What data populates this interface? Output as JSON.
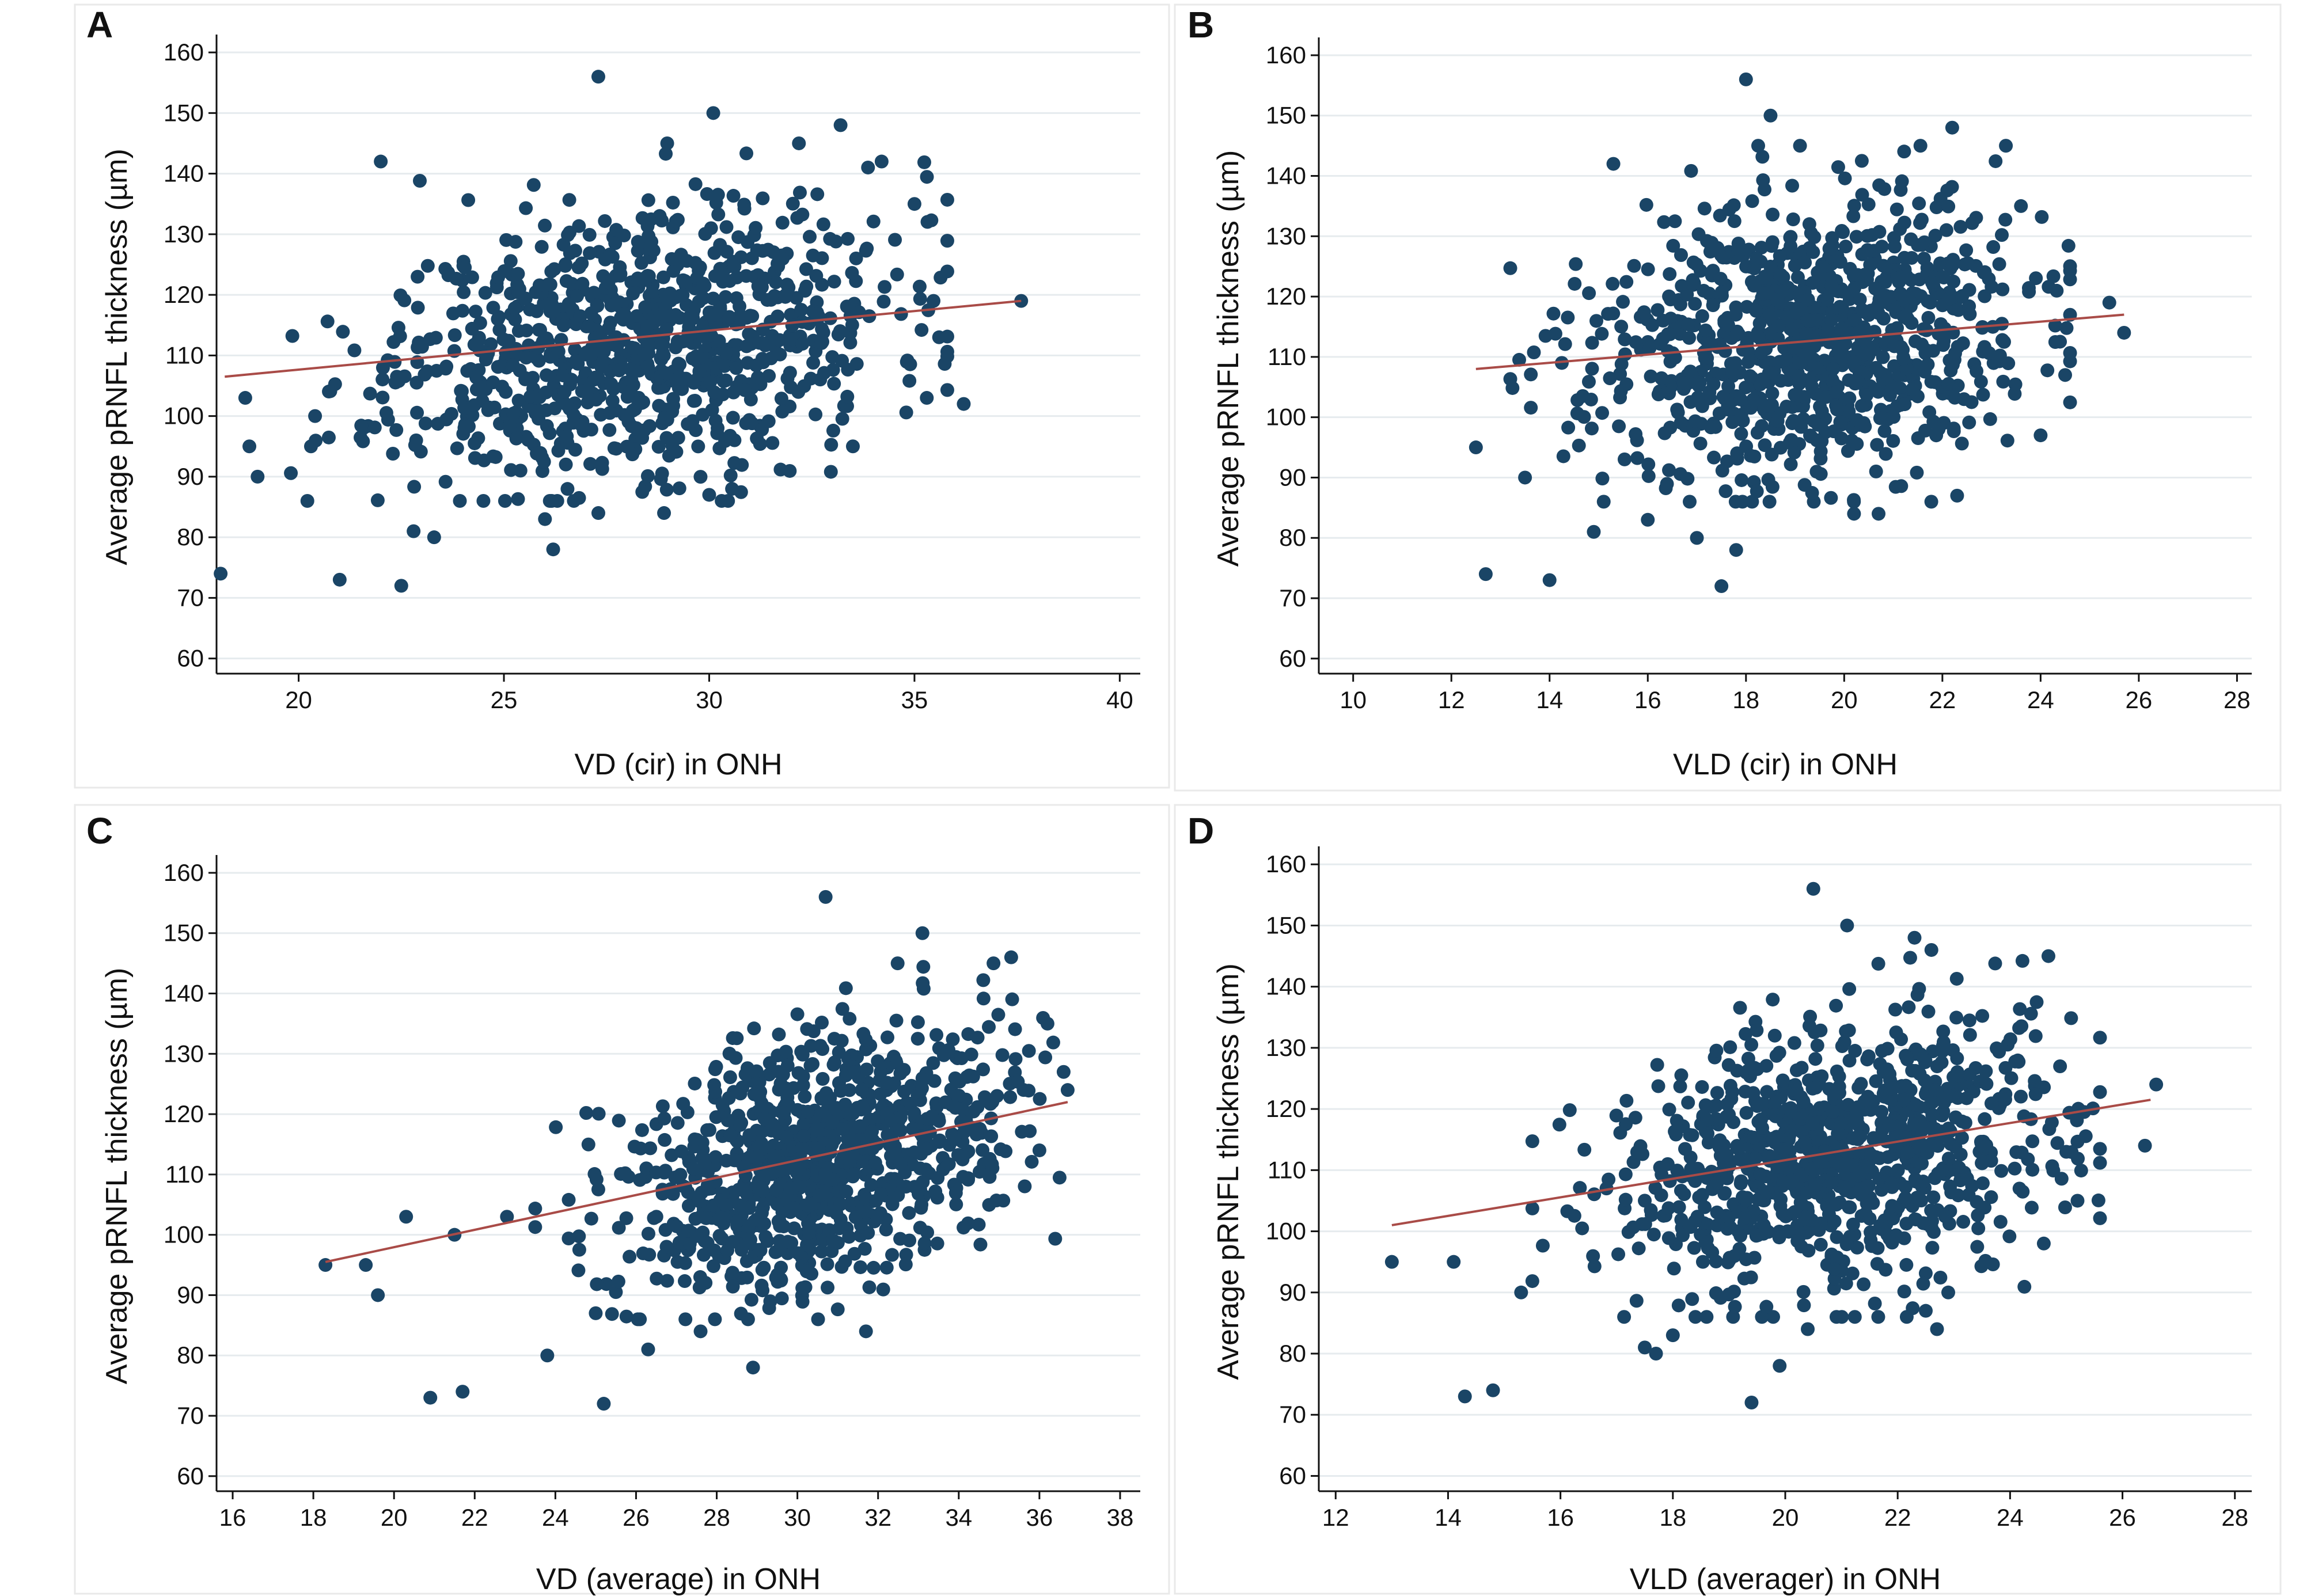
{
  "colors": {
    "points": "#1a4566",
    "fit_line": "#a94b47",
    "grid": "#e6ebee",
    "axis": "#111111"
  },
  "chart_data": [
    {
      "panel": "A",
      "type": "scatter",
      "xlabel": "VD (cir) in ONH",
      "ylabel": "Average pRNFL thickness (µm)",
      "xlim": [
        18,
        40.5
      ],
      "ylim": [
        57.5,
        162
      ],
      "xticks": [
        20,
        25,
        30,
        35,
        40
      ],
      "yticks": [
        60,
        70,
        80,
        90,
        100,
        110,
        120,
        130,
        140,
        150,
        160
      ],
      "fit_line": {
        "x": [
          18.2,
          37.6
        ],
        "y": [
          106.5,
          119
        ]
      },
      "outlier_points": [
        [
          18.1,
          74
        ],
        [
          18.7,
          103
        ],
        [
          18.8,
          95
        ],
        [
          19.0,
          90
        ],
        [
          20.3,
          95
        ],
        [
          20.4,
          100
        ],
        [
          21.0,
          73
        ],
        [
          22.0,
          142
        ],
        [
          22.5,
          72
        ],
        [
          22.8,
          81
        ],
        [
          23.3,
          80
        ],
        [
          26.2,
          78
        ],
        [
          26.0,
          83
        ],
        [
          27.3,
          156
        ],
        [
          30.1,
          150
        ],
        [
          30.0,
          87
        ],
        [
          33.2,
          148
        ],
        [
          34.2,
          142
        ],
        [
          35.0,
          135
        ],
        [
          35.6,
          113
        ],
        [
          36.2,
          102
        ],
        [
          35.3,
          103
        ],
        [
          33.5,
          95
        ],
        [
          28.9,
          84
        ],
        [
          27.3,
          84
        ],
        [
          37.6,
          119
        ]
      ],
      "cloud": {
        "n": 950,
        "x_mean": 28.3,
        "x_sd": 3.0,
        "y_mean": 112.5,
        "y_sd": 11.5,
        "corr": 0.28,
        "x_range": [
          19.8,
          35.8
        ],
        "y_range": [
          86,
          145
        ],
        "seed": 11
      }
    },
    {
      "panel": "B",
      "type": "scatter",
      "xlabel": "VLD (cir) in ONH",
      "ylabel": "Average pRNFL thickness (µm)",
      "xlim": [
        9.3,
        28.3
      ],
      "ylim": [
        57.5,
        162
      ],
      "xticks": [
        10,
        12,
        14,
        16,
        18,
        20,
        22,
        24,
        26,
        28
      ],
      "yticks": [
        60,
        70,
        80,
        90,
        100,
        110,
        120,
        130,
        140,
        150,
        160
      ],
      "fit_line": {
        "x": [
          12.5,
          25.7
        ],
        "y": [
          108,
          117
        ]
      },
      "outlier_points": [
        [
          12.5,
          95
        ],
        [
          12.7,
          74
        ],
        [
          13.5,
          90
        ],
        [
          14.0,
          73
        ],
        [
          14.9,
          81
        ],
        [
          16.0,
          83
        ],
        [
          17.0,
          80
        ],
        [
          17.5,
          72
        ],
        [
          17.8,
          78
        ],
        [
          18.0,
          156
        ],
        [
          18.5,
          150
        ],
        [
          20.2,
          84
        ],
        [
          20.7,
          84
        ],
        [
          22.2,
          148
        ],
        [
          22.3,
          87
        ],
        [
          23.6,
          135
        ],
        [
          24.0,
          97
        ],
        [
          24.5,
          107
        ],
        [
          25.4,
          119
        ],
        [
          25.7,
          114
        ],
        [
          15.3,
          142
        ]
      ],
      "cloud": {
        "n": 950,
        "x_mean": 19.2,
        "x_sd": 2.2,
        "y_mean": 112.5,
        "y_sd": 11.5,
        "corr": 0.15,
        "x_range": [
          13.2,
          24.6
        ],
        "y_range": [
          86,
          145
        ],
        "seed": 23
      }
    },
    {
      "panel": "C",
      "type": "scatter",
      "xlabel": "VD (average) in ONH",
      "ylabel": "Average pRNFL thickness (µm)",
      "xlim": [
        15.6,
        38.5
      ],
      "ylim": [
        57.5,
        162
      ],
      "xticks": [
        16,
        18,
        20,
        22,
        24,
        26,
        28,
        30,
        32,
        34,
        36,
        38
      ],
      "yticks": [
        60,
        70,
        80,
        90,
        100,
        110,
        120,
        130,
        140,
        150,
        160
      ],
      "fit_line": {
        "x": [
          18.3,
          36.7
        ],
        "y": [
          95.5,
          122
        ]
      },
      "outlier_points": [
        [
          18.3,
          95
        ],
        [
          19.3,
          95
        ],
        [
          19.6,
          90
        ],
        [
          20.3,
          103
        ],
        [
          20.9,
          73
        ],
        [
          21.7,
          74
        ],
        [
          21.5,
          100
        ],
        [
          22.8,
          103
        ],
        [
          23.8,
          80
        ],
        [
          25.2,
          72
        ],
        [
          26.3,
          81
        ],
        [
          28.9,
          78
        ],
        [
          30.7,
          156
        ],
        [
          33.1,
          150
        ],
        [
          35.3,
          146
        ],
        [
          36.2,
          135
        ],
        [
          36.6,
          127
        ],
        [
          36.7,
          124
        ],
        [
          36.0,
          114
        ],
        [
          31.7,
          84
        ],
        [
          27.6,
          84
        ],
        [
          25.0,
          87
        ]
      ],
      "cloud": {
        "n": 950,
        "x_mean": 30.5,
        "x_sd": 2.3,
        "y_mean": 112.5,
        "y_sd": 11.0,
        "corr": 0.36,
        "x_range": [
          23.5,
          36.5
        ],
        "y_range": [
          86,
          145
        ],
        "seed": 37
      }
    },
    {
      "panel": "D",
      "type": "scatter",
      "xlabel": "VLD (averager) in ONH",
      "ylabel": "Average pRNFL thickness (µm)",
      "xlim": [
        11.7,
        28.3
      ],
      "ylim": [
        57.5,
        162
      ],
      "xticks": [
        12,
        14,
        16,
        18,
        20,
        22,
        24,
        26,
        28
      ],
      "yticks": [
        60,
        70,
        80,
        90,
        100,
        110,
        120,
        130,
        140,
        150,
        160
      ],
      "fit_line": {
        "x": [
          13.0,
          26.5
        ],
        "y": [
          101,
          121.5
        ]
      },
      "outlier_points": [
        [
          13.0,
          95
        ],
        [
          14.1,
          95
        ],
        [
          14.3,
          73
        ],
        [
          14.8,
          74
        ],
        [
          15.3,
          90
        ],
        [
          17.5,
          81
        ],
        [
          17.7,
          80
        ],
        [
          18.0,
          83
        ],
        [
          19.4,
          72
        ],
        [
          19.9,
          78
        ],
        [
          20.4,
          84
        ],
        [
          20.5,
          156
        ],
        [
          21.1,
          150
        ],
        [
          22.7,
          84
        ],
        [
          22.5,
          87
        ],
        [
          22.9,
          90
        ],
        [
          22.6,
          146
        ],
        [
          22.3,
          148
        ],
        [
          25.2,
          105
        ],
        [
          26.4,
          114
        ],
        [
          26.6,
          124
        ],
        [
          24.6,
          98
        ]
      ],
      "cloud": {
        "n": 950,
        "x_mean": 21.0,
        "x_sd": 2.0,
        "y_mean": 112.5,
        "y_sd": 11.5,
        "corr": 0.3,
        "x_range": [
          15.5,
          25.6
        ],
        "y_range": [
          86,
          145
        ],
        "seed": 53
      }
    }
  ]
}
